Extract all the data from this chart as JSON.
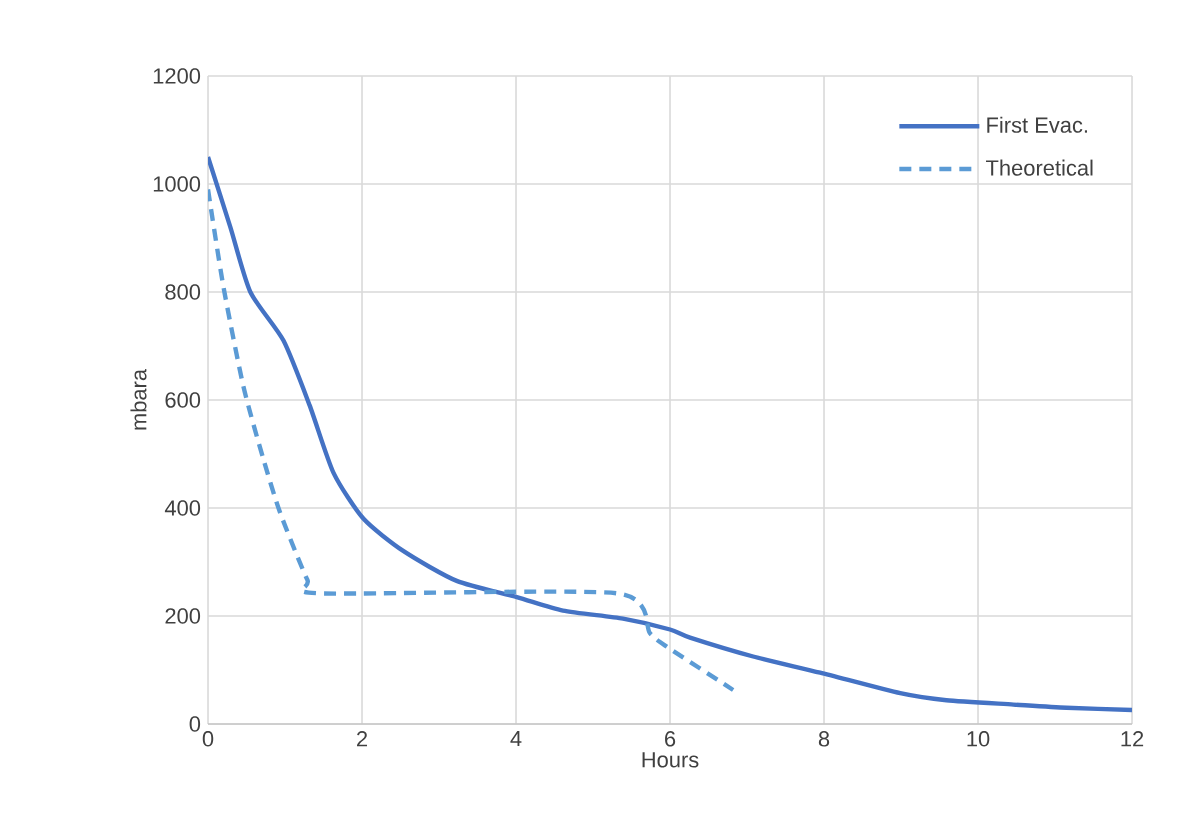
{
  "chart_data": {
    "type": "line",
    "xlabel": "Hours",
    "ylabel": "mbara",
    "xlim": [
      0,
      12
    ],
    "xticks": [
      0,
      2,
      4,
      6,
      8,
      10,
      12
    ],
    "ylim": [
      0,
      1200
    ],
    "yticks": [
      0,
      200,
      400,
      600,
      800,
      1000,
      1200
    ],
    "grid": true,
    "legend": "top right",
    "series": [
      {
        "name": "First Evac.",
        "color": "#4472c4",
        "line_style": "solid",
        "x": [
          0,
          0.29,
          0.55,
          0.98,
          1.32,
          1.63,
          2.02,
          2.54,
          3.23,
          4.01,
          4.61,
          5.39,
          6.0,
          6.26,
          7.08,
          7.95,
          8.99,
          9.59,
          10.46,
          11.15,
          12.0
        ],
        "values": [
          1050,
          920,
          800,
          710,
          590,
          465,
          380,
          320,
          265,
          235,
          210,
          195,
          175,
          160,
          125,
          95,
          57,
          44,
          36,
          30,
          26
        ]
      },
      {
        "name": "Theoretical",
        "color": "#5b9bd5",
        "line_style": "dashed",
        "x": [
          0,
          0.2,
          0.46,
          0.72,
          0.94,
          1.29,
          1.45,
          5.31,
          5.74,
          5.96,
          6.82
        ],
        "values": [
          990,
          810,
          625,
          490,
          390,
          267,
          242,
          242,
          168,
          143,
          63
        ]
      }
    ]
  }
}
